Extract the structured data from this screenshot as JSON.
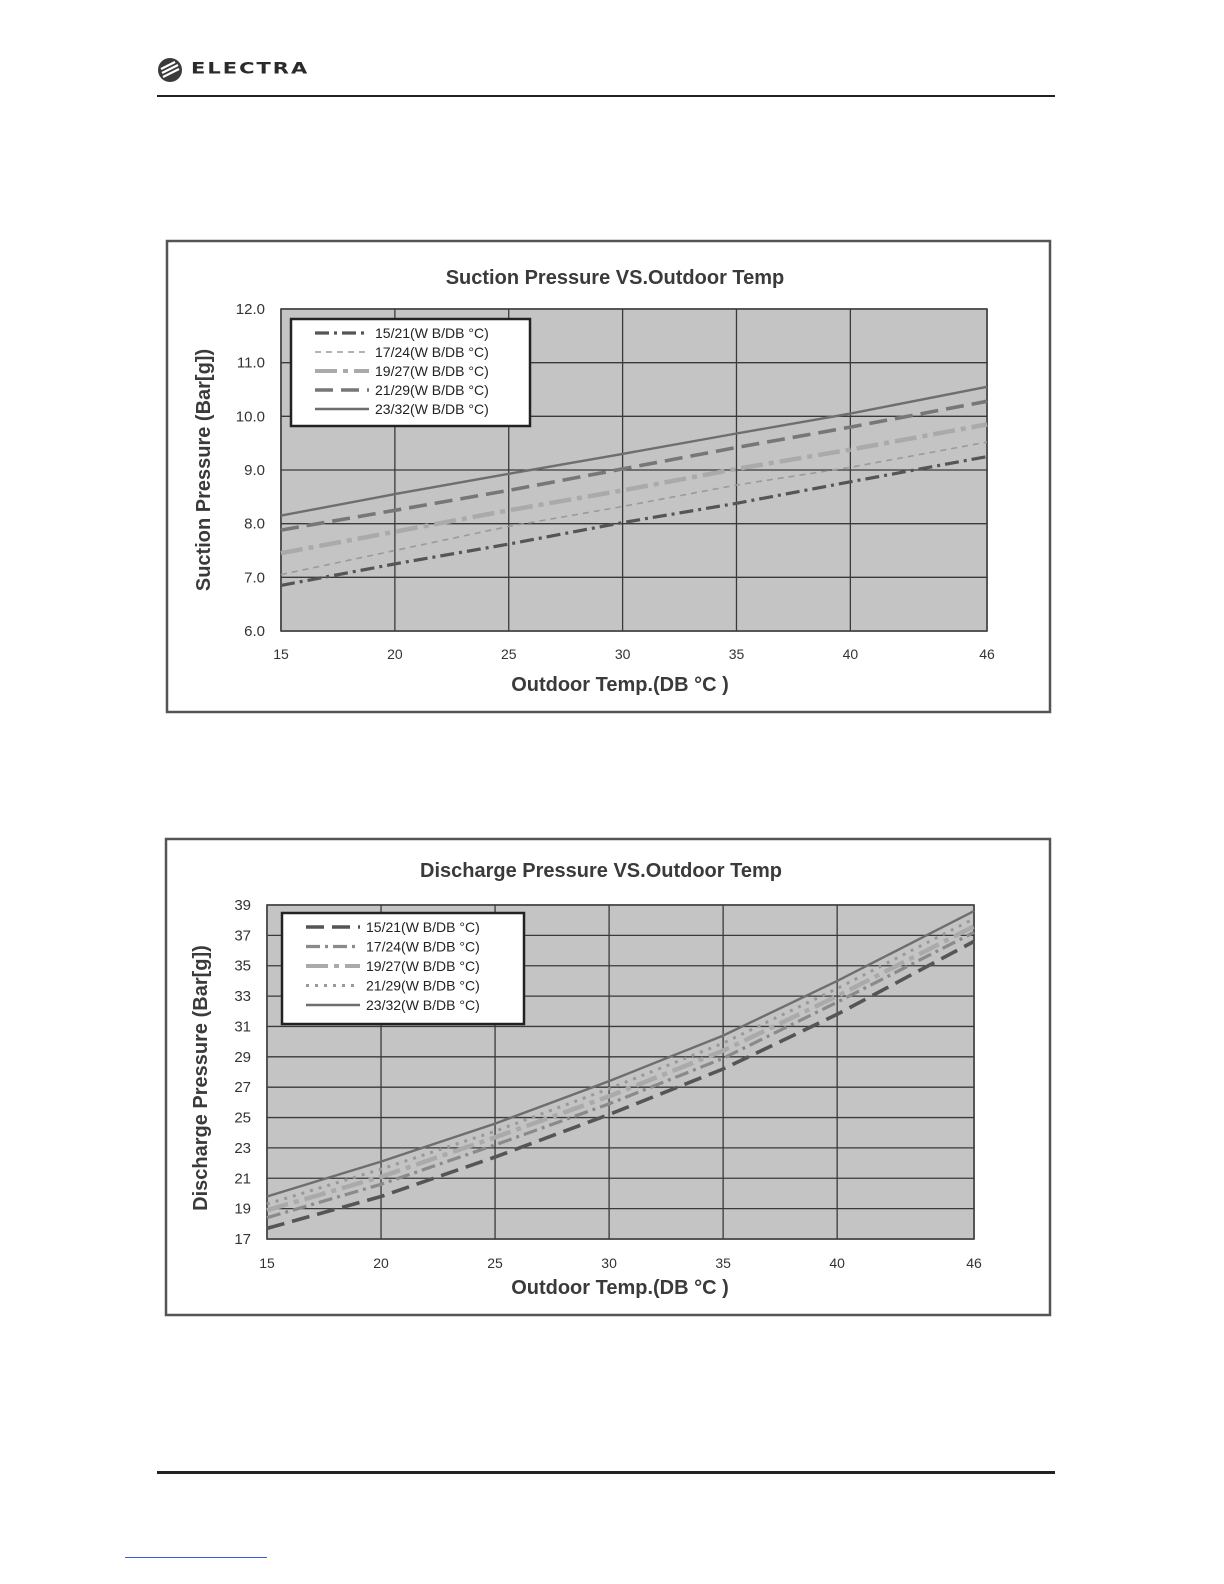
{
  "header": {
    "brand": "ELECTRA",
    "logo_icon": "electra-logo-icon"
  },
  "colors": {
    "plot_bg": "#c4c4c4",
    "grid": "#3a3a3a",
    "frame": "#555555"
  },
  "chart_data": [
    {
      "type": "line",
      "title": "Suction Pressure VS.Outdoor Temp",
      "xlabel": "Outdoor Temp.(DB °C )",
      "ylabel": "Suction Pressure (Bar[g])",
      "x_ticks": [
        "15",
        "20",
        "25",
        "30",
        "35",
        "40",
        "46"
      ],
      "y_ticks": [
        "6.0",
        "7.0",
        "8.0",
        "9.0",
        "10.0",
        "11.0",
        "12.0"
      ],
      "ylim": [
        6.0,
        12.0
      ],
      "grid": true,
      "legend_position": "top-left",
      "x": [
        15,
        20,
        25,
        30,
        35,
        40,
        46
      ],
      "series": [
        {
          "name": "15/21(W B/DB °C)",
          "style": "dash-dot",
          "color": "#555555",
          "values": [
            6.85,
            7.25,
            7.62,
            8.02,
            8.38,
            8.78,
            9.25
          ]
        },
        {
          "name": "17/24(W B/DB °C)",
          "style": "thin-dash",
          "color": "#9a9a9a",
          "values": [
            7.05,
            7.5,
            7.95,
            8.32,
            8.72,
            9.05,
            9.52
          ]
        },
        {
          "name": "19/27(W B/DB °C)",
          "style": "long-dash-dot",
          "color": "#aaaaaa",
          "values": [
            7.45,
            7.85,
            8.25,
            8.62,
            9.02,
            9.38,
            9.85
          ]
        },
        {
          "name": "21/29(W B/DB °C)",
          "style": "long-dash",
          "color": "#777777",
          "values": [
            7.88,
            8.25,
            8.62,
            9.02,
            9.42,
            9.8,
            10.28
          ]
        },
        {
          "name": "23/32(W B/DB °C)",
          "style": "solid",
          "color": "#6e6e6e",
          "values": [
            8.15,
            8.55,
            8.93,
            9.3,
            9.68,
            10.05,
            10.55
          ]
        }
      ]
    },
    {
      "type": "line",
      "title": "Discharge Pressure VS.Outdoor Temp",
      "xlabel": "Outdoor Temp.(DB °C )",
      "ylabel": "Discharge Pressure (Bar[g])",
      "x_ticks": [
        "15",
        "20",
        "25",
        "30",
        "35",
        "40",
        "46"
      ],
      "y_ticks": [
        "17",
        "19",
        "21",
        "23",
        "25",
        "27",
        "29",
        "31",
        "33",
        "35",
        "37",
        "39"
      ],
      "ylim": [
        17,
        39
      ],
      "grid": true,
      "legend_position": "top-left",
      "x": [
        15,
        20,
        25,
        30,
        35,
        40,
        46
      ],
      "series": [
        {
          "name": "15/21(W B/DB °C)",
          "style": "long-dash",
          "color": "#555555",
          "values": [
            17.7,
            19.8,
            22.4,
            25.2,
            28.2,
            31.8,
            36.6
          ]
        },
        {
          "name": "17/24(W B/DB °C)",
          "style": "dash-dot",
          "color": "#8a8a8a",
          "values": [
            18.4,
            20.6,
            23.2,
            25.9,
            28.9,
            32.6,
            37.2
          ]
        },
        {
          "name": "19/27(W B/DB °C)",
          "style": "long-dash-dot",
          "color": "#aaaaaa",
          "values": [
            18.9,
            21.1,
            23.7,
            26.4,
            29.4,
            33.0,
            37.6
          ]
        },
        {
          "name": "21/29(W B/DB °C)",
          "style": "dotted",
          "color": "#999999",
          "values": [
            19.3,
            21.6,
            24.1,
            26.9,
            29.9,
            33.5,
            38.1
          ]
        },
        {
          "name": "23/32(W B/DB °C)",
          "style": "solid",
          "color": "#6e6e6e",
          "values": [
            19.8,
            22.1,
            24.6,
            27.4,
            30.4,
            34.0,
            38.6
          ]
        }
      ]
    }
  ]
}
